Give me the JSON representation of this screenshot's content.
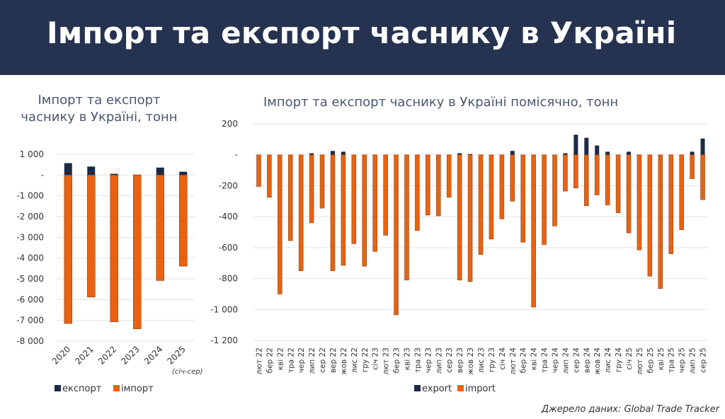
{
  "header": {
    "title": "Імпорт та експорт часнику в Україні"
  },
  "source": "Джерело даних: Global Trade Tracker",
  "colors": {
    "export": "#1e2a45",
    "import": "#e8620f",
    "header_bg": "#253250"
  },
  "chart_data": [
    {
      "type": "bar",
      "stacked": true,
      "title": "Імпорт та експорт часнику в Україні, тонн",
      "categories": [
        "2020",
        "2021",
        "2022",
        "2023",
        "2024",
        "2025"
      ],
      "category_note": {
        "2025": "(січ-сер)"
      },
      "series": [
        {
          "name": "експорт",
          "values": [
            575,
            410,
            60,
            20,
            360,
            160
          ]
        },
        {
          "name": "імпорт",
          "values": [
            -7150,
            -5880,
            -7070,
            -7410,
            -5080,
            -4390
          ]
        }
      ],
      "ylim": [
        -8000,
        1000
      ],
      "yticks": [
        1000,
        0,
        -1000,
        -2000,
        -3000,
        -4000,
        -5000,
        -6000,
        -7000,
        -8000
      ],
      "ytick_labels": [
        "1 000",
        "-",
        "-1 000",
        "-2 000",
        "-3 000",
        "-4 000",
        "-5 000",
        "-6 000",
        "-7 000",
        "-8 000"
      ],
      "grid": true,
      "legend": "bottom"
    },
    {
      "type": "bar",
      "stacked": true,
      "title": "Імпорт та експорт часнику в Україні помісячно, тонн",
      "categories": [
        "лют 22",
        "бер 22",
        "кві 22",
        "тра 22",
        "чер 22",
        "лип 22",
        "сер 22",
        "вер 22",
        "жов 22",
        "лис 22",
        "гру 22",
        "січ 23",
        "лют 23",
        "бер 23",
        "кві 23",
        "тра 23",
        "чер 23",
        "лип 23",
        "сер 23",
        "вер 23",
        "жов 23",
        "лис 23",
        "гру 23",
        "січ 24",
        "лют 24",
        "бер 24",
        "кві 24",
        "тра 24",
        "чер 24",
        "лип 24",
        "сер 24",
        "вер 24",
        "жов 24",
        "лис 24",
        "гру 24",
        "січ 25",
        "лют 25",
        "бер 25",
        "кві 25",
        "тра 25",
        "чер 25",
        "лип 25",
        "сер 25"
      ],
      "series": [
        {
          "name": "export",
          "values": [
            0,
            0,
            0,
            0,
            0,
            10,
            0,
            25,
            20,
            0,
            0,
            0,
            0,
            0,
            0,
            0,
            0,
            0,
            0,
            10,
            5,
            0,
            0,
            0,
            25,
            0,
            0,
            0,
            0,
            10,
            130,
            110,
            60,
            20,
            0,
            20,
            0,
            0,
            0,
            0,
            0,
            20,
            105
          ]
        },
        {
          "name": "import",
          "values": [
            -205,
            -275,
            -900,
            -555,
            -750,
            -440,
            -345,
            -750,
            -715,
            -575,
            -720,
            -625,
            -520,
            -1035,
            -810,
            -490,
            -390,
            -395,
            -275,
            -810,
            -820,
            -645,
            -545,
            -415,
            -300,
            -565,
            -985,
            -580,
            -460,
            -235,
            -215,
            -330,
            -260,
            -325,
            -375,
            -505,
            -615,
            -785,
            -865,
            -640,
            -485,
            -155,
            -290
          ]
        }
      ],
      "ylim": [
        -1200,
        200
      ],
      "yticks": [
        200,
        0,
        -200,
        -400,
        -600,
        -800,
        -1000,
        -1200
      ],
      "ytick_labels": [
        "200",
        "-",
        "-200",
        "-400",
        "-600",
        "-800",
        "-1 000",
        "-1 200"
      ],
      "grid": true,
      "legend": "bottom"
    }
  ]
}
